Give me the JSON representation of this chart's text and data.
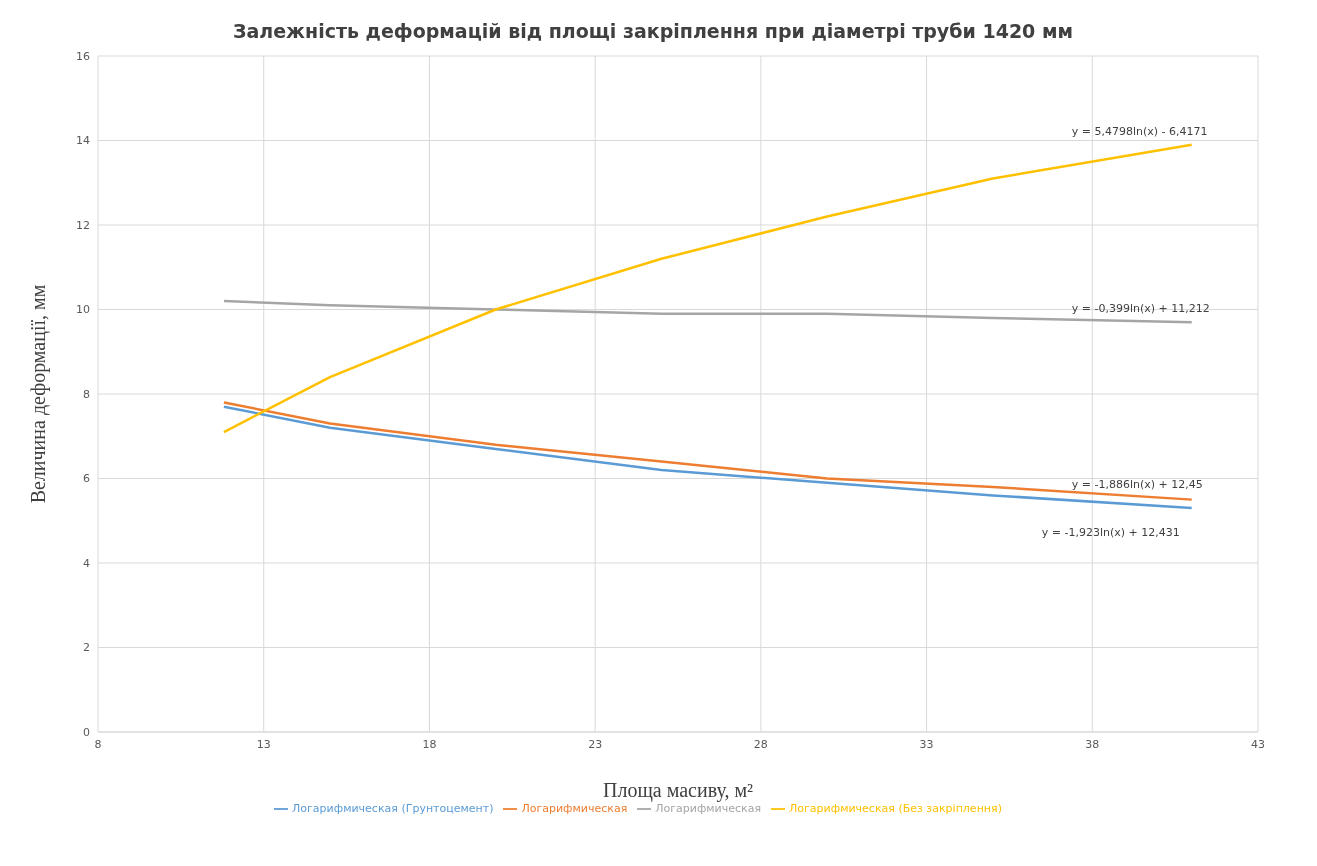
{
  "chart_data": {
    "type": "line",
    "title": "Залежність деформацій від площі закріплення при діаметрі труби 1420 мм",
    "xlabel": "Площа  масиву, м²",
    "ylabel": "Величина деформації, мм",
    "x": [
      11.8,
      15,
      20,
      25,
      30,
      35,
      41
    ],
    "series": [
      {
        "name": "Логарифмическая (Грунтоцемент)",
        "color": "#5b9bd5",
        "values": [
          7.7,
          7.2,
          6.7,
          6.2,
          5.9,
          5.6,
          5.3
        ]
      },
      {
        "name": "Логарифмическая",
        "color": "#ed7d31",
        "values": [
          7.8,
          7.3,
          6.8,
          6.4,
          6.0,
          5.8,
          5.5
        ]
      },
      {
        "name": "Логарифмическая",
        "color": "#a5a5a5",
        "values": [
          10.2,
          10.1,
          10.0,
          9.9,
          9.9,
          9.8,
          9.7
        ]
      },
      {
        "name": "Логарифмическая (Без закріплення)",
        "color": "#ffc000",
        "values": [
          7.1,
          8.4,
          10.0,
          11.2,
          12.2,
          13.1,
          13.9
        ]
      }
    ],
    "annotations": [
      "y = -1,923ln(x) + 12,431",
      "y = -1,886ln(x) + 12,45",
      "y = -0,399ln(x) + 11,212",
      "y = 5,4798ln(x) - 6,4171"
    ],
    "xlim": [
      8,
      43
    ],
    "xticks": [
      8,
      13,
      18,
      23,
      28,
      33,
      38,
      43
    ],
    "ylim": [
      0,
      16
    ],
    "yticks": [
      0,
      2,
      4,
      6,
      8,
      10,
      12,
      14,
      16
    ],
    "grid": true,
    "legend": "bottom",
    "marker": "none",
    "line_style": "solid"
  }
}
